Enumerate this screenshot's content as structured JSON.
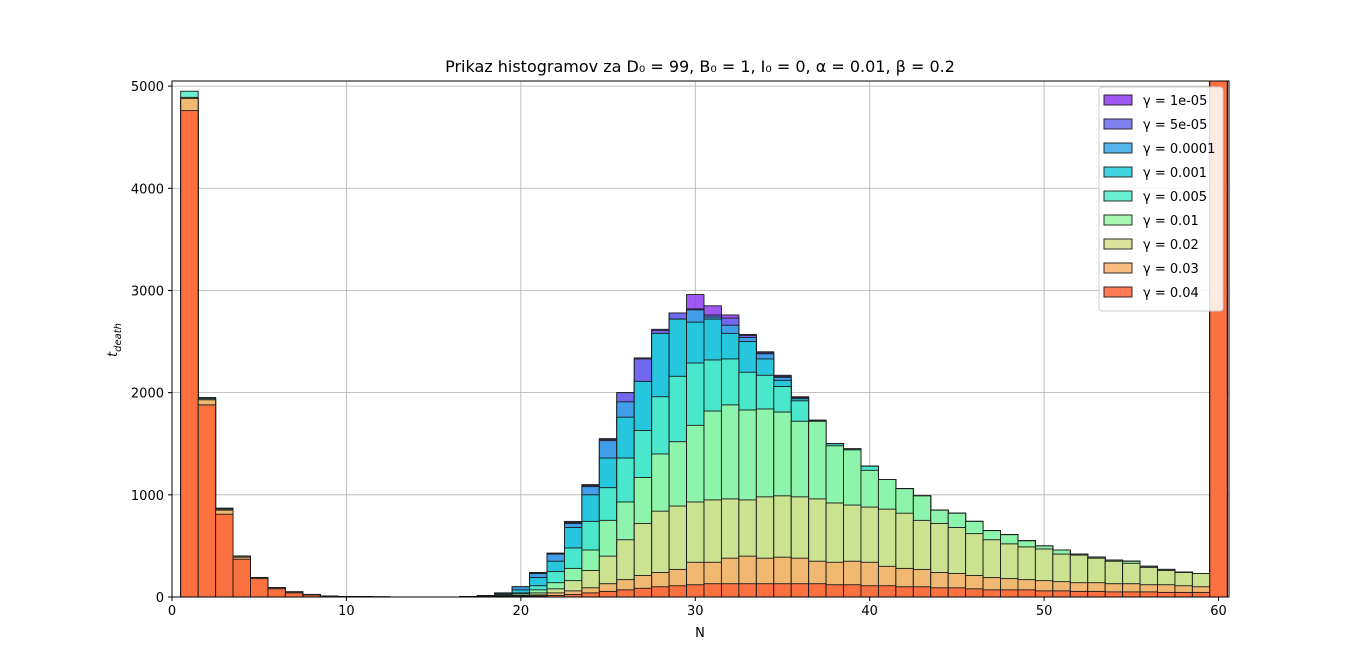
{
  "chart_data": {
    "type": "bar",
    "subtype": "overlaid-histogram",
    "title": "Prikaz histogramov za D₀ = 99, B₀ = 1, I₀ = 0, α = 0.01, β = 0.2",
    "xlabel": "N",
    "ylabel": "t_death",
    "xlim": [
      0,
      60.6
    ],
    "ylim": [
      0,
      5050
    ],
    "xticks": [
      0,
      10,
      20,
      30,
      40,
      50,
      60
    ],
    "yticks": [
      0,
      1000,
      2000,
      3000,
      4000,
      5000
    ],
    "grid": true,
    "legend_position": "top-right",
    "bins": [
      1,
      2,
      3,
      4,
      5,
      6,
      7,
      8,
      9,
      10,
      11,
      12,
      13,
      14,
      15,
      16,
      17,
      18,
      19,
      20,
      21,
      22,
      23,
      24,
      25,
      26,
      27,
      28,
      29,
      30,
      31,
      32,
      33,
      34,
      35,
      36,
      37,
      38,
      39,
      40,
      41,
      42,
      43,
      44,
      45,
      46,
      47,
      48,
      49,
      50,
      51,
      52,
      53,
      54,
      55,
      56,
      57,
      58,
      59,
      60
    ],
    "series": [
      {
        "name": "γ = 1e-05",
        "color": "#8e3cf0",
        "values": [
          4700,
          1950,
          860,
          400,
          190,
          90,
          50,
          25,
          10,
          5,
          2,
          1,
          0,
          0,
          0,
          0,
          5,
          15,
          40,
          100,
          240,
          430,
          740,
          1100,
          1550,
          2000,
          2340,
          2620,
          2780,
          2960,
          2850,
          2760,
          2570,
          2400,
          2170,
          1960,
          1730,
          1500,
          1450,
          1280,
          1150,
          1060,
          990,
          850,
          820,
          740,
          650,
          610,
          550,
          500,
          460,
          420,
          390,
          360,
          350,
          300,
          270,
          245,
          230,
          5050
        ]
      },
      {
        "name": "γ = 5e-05",
        "color": "#6a6cf0",
        "values": [
          4700,
          1950,
          860,
          400,
          190,
          90,
          50,
          25,
          10,
          5,
          2,
          1,
          0,
          0,
          0,
          0,
          5,
          15,
          40,
          100,
          235,
          425,
          730,
          1090,
          1540,
          2000,
          2330,
          2610,
          2780,
          2820,
          2760,
          2730,
          2560,
          2390,
          2160,
          1950,
          1730,
          1500,
          1450,
          1280,
          1150,
          1060,
          990,
          850,
          820,
          740,
          650,
          610,
          550,
          500,
          460,
          420,
          390,
          360,
          350,
          300,
          270,
          245,
          230,
          5050
        ]
      },
      {
        "name": "γ = 0.0001",
        "color": "#38a8e8",
        "values": [
          4710,
          1950,
          860,
          400,
          190,
          90,
          50,
          25,
          10,
          5,
          2,
          1,
          0,
          0,
          0,
          0,
          5,
          15,
          40,
          100,
          230,
          420,
          720,
          1080,
          1530,
          1910,
          2110,
          2580,
          2720,
          2810,
          2740,
          2660,
          2540,
          2380,
          2150,
          1950,
          1730,
          1500,
          1450,
          1280,
          1150,
          1060,
          990,
          850,
          820,
          740,
          650,
          610,
          550,
          500,
          460,
          420,
          390,
          360,
          350,
          300,
          270,
          245,
          230,
          5050
        ]
      },
      {
        "name": "γ = 0.001",
        "color": "#22ccdc",
        "values": [
          4750,
          1950,
          860,
          400,
          190,
          90,
          50,
          25,
          10,
          5,
          2,
          1,
          0,
          0,
          0,
          0,
          5,
          15,
          30,
          70,
          190,
          350,
          680,
          1000,
          1360,
          1760,
          2110,
          2580,
          2720,
          2690,
          2720,
          2580,
          2500,
          2330,
          2120,
          1940,
          1720,
          1500,
          1450,
          1280,
          1150,
          1060,
          990,
          850,
          820,
          740,
          650,
          610,
          550,
          500,
          460,
          420,
          390,
          360,
          350,
          300,
          270,
          245,
          230,
          5050
        ]
      },
      {
        "name": "γ = 0.005",
        "color": "#50ecc8",
        "values": [
          4950,
          1950,
          870,
          400,
          190,
          90,
          50,
          25,
          10,
          5,
          2,
          1,
          0,
          0,
          0,
          0,
          5,
          10,
          20,
          40,
          110,
          250,
          480,
          740,
          1070,
          1360,
          1630,
          1960,
          2160,
          2290,
          2320,
          2330,
          2200,
          2170,
          2060,
          1920,
          1720,
          1500,
          1450,
          1280,
          1150,
          1060,
          990,
          850,
          820,
          740,
          650,
          610,
          550,
          500,
          460,
          420,
          390,
          360,
          350,
          300,
          270,
          245,
          230,
          5050
        ]
      },
      {
        "name": "γ = 0.01",
        "color": "#98f6a6",
        "values": [
          4880,
          1930,
          860,
          400,
          190,
          90,
          50,
          25,
          10,
          5,
          2,
          1,
          0,
          0,
          0,
          0,
          5,
          10,
          20,
          30,
          70,
          140,
          280,
          460,
          750,
          930,
          1170,
          1400,
          1520,
          1680,
          1820,
          1880,
          1830,
          1840,
          1810,
          1720,
          1720,
          1480,
          1440,
          1240,
          1150,
          1060,
          990,
          850,
          820,
          740,
          650,
          610,
          550,
          500,
          460,
          420,
          390,
          360,
          350,
          300,
          270,
          245,
          230,
          5050
        ]
      },
      {
        "name": "γ = 0.02",
        "color": "#d6de8c",
        "values": [
          4890,
          1940,
          860,
          400,
          190,
          90,
          50,
          25,
          10,
          5,
          2,
          1,
          0,
          0,
          0,
          0,
          0,
          5,
          10,
          15,
          40,
          80,
          160,
          260,
          400,
          560,
          720,
          840,
          890,
          930,
          950,
          960,
          950,
          980,
          990,
          980,
          960,
          920,
          900,
          880,
          860,
          820,
          750,
          720,
          680,
          620,
          560,
          520,
          490,
          470,
          420,
          410,
          380,
          350,
          330,
          290,
          260,
          240,
          230,
          5050
        ]
      },
      {
        "name": "γ = 0.03",
        "color": "#f7b06a",
        "values": [
          4880,
          1930,
          850,
          390,
          190,
          90,
          50,
          25,
          10,
          5,
          2,
          1,
          0,
          0,
          0,
          0,
          0,
          0,
          5,
          10,
          20,
          40,
          60,
          90,
          130,
          170,
          210,
          240,
          270,
          340,
          340,
          380,
          400,
          380,
          390,
          380,
          350,
          340,
          350,
          340,
          300,
          280,
          270,
          240,
          230,
          210,
          190,
          180,
          170,
          160,
          150,
          140,
          140,
          130,
          130,
          120,
          120,
          110,
          100,
          5050
        ]
      },
      {
        "name": "γ = 0.04",
        "color": "#ff6438",
        "values": [
          4760,
          1880,
          810,
          370,
          180,
          80,
          40,
          20,
          10,
          5,
          2,
          1,
          0,
          0,
          0,
          0,
          0,
          0,
          2,
          5,
          10,
          15,
          25,
          40,
          55,
          70,
          85,
          100,
          110,
          120,
          130,
          130,
          130,
          130,
          130,
          130,
          130,
          120,
          120,
          110,
          110,
          100,
          100,
          90,
          90,
          80,
          70,
          70,
          70,
          60,
          60,
          55,
          55,
          50,
          50,
          50,
          45,
          45,
          45,
          5050
        ]
      }
    ]
  }
}
